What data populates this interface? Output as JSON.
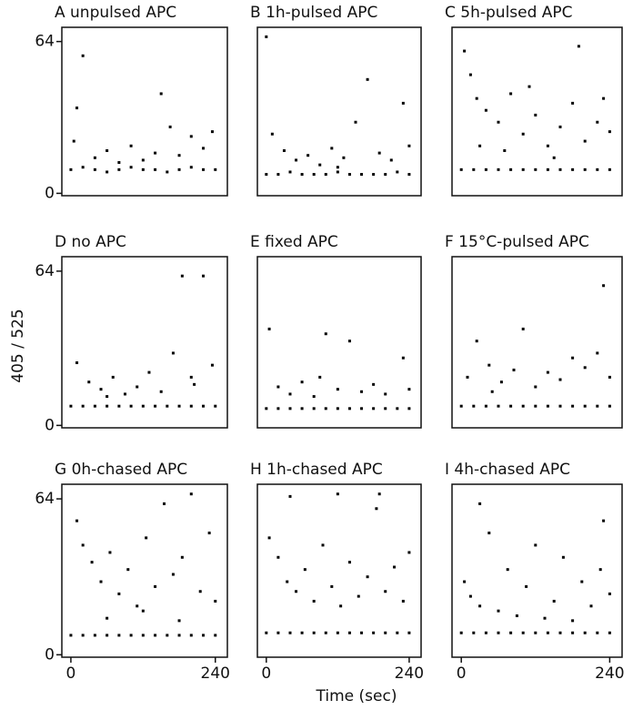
{
  "y_label": "405 / 525",
  "x_label": "Time (sec)",
  "chart_data": [
    {
      "type": "scatter",
      "title": "A unpulsed APC",
      "color": "#000",
      "xlim": [
        -15,
        260
      ],
      "ylim": [
        -1,
        70
      ],
      "yticks": [
        0,
        64
      ],
      "x": [
        0,
        20,
        40,
        60,
        80,
        100,
        120,
        140,
        160,
        180,
        200,
        220,
        240,
        5,
        20,
        40,
        60,
        80,
        100,
        120,
        140,
        150,
        165,
        180,
        200,
        220,
        235,
        10
      ],
      "values": [
        10,
        11,
        10,
        9,
        10,
        11,
        10,
        10,
        9,
        10,
        11,
        10,
        10,
        22,
        58,
        15,
        18,
        13,
        20,
        14,
        17,
        42,
        28,
        16,
        24,
        19,
        26,
        36
      ]
    },
    {
      "type": "scatter",
      "title": "B 1h-pulsed APC",
      "color": "#000",
      "xlim": [
        -15,
        260
      ],
      "ylim": [
        -1,
        70
      ],
      "x": [
        0,
        20,
        40,
        60,
        80,
        100,
        120,
        140,
        160,
        180,
        200,
        220,
        240,
        0,
        10,
        30,
        50,
        70,
        90,
        110,
        130,
        150,
        170,
        190,
        210,
        230,
        240,
        120
      ],
      "values": [
        8,
        8,
        9,
        8,
        8,
        8,
        9,
        8,
        8,
        8,
        8,
        9,
        8,
        66,
        25,
        18,
        14,
        16,
        12,
        19,
        15,
        30,
        48,
        17,
        14,
        38,
        20,
        11
      ]
    },
    {
      "type": "scatter",
      "title": "C 5h-pulsed APC",
      "color": "#000",
      "xlim": [
        -15,
        260
      ],
      "ylim": [
        -1,
        70
      ],
      "x": [
        0,
        20,
        40,
        60,
        80,
        100,
        120,
        140,
        160,
        180,
        200,
        220,
        240,
        5,
        15,
        25,
        40,
        60,
        80,
        100,
        120,
        140,
        160,
        180,
        200,
        220,
        240,
        190,
        30,
        70,
        110,
        150,
        230
      ],
      "values": [
        10,
        10,
        10,
        10,
        10,
        10,
        10,
        10,
        10,
        10,
        10,
        10,
        10,
        60,
        50,
        40,
        35,
        30,
        42,
        25,
        33,
        20,
        28,
        38,
        22,
        30,
        26,
        62,
        20,
        18,
        45,
        15,
        40
      ]
    },
    {
      "type": "scatter",
      "title": "D no APC",
      "color": "#000",
      "xlim": [
        -15,
        260
      ],
      "ylim": [
        -1,
        70
      ],
      "yticks": [
        0,
        64
      ],
      "x": [
        0,
        20,
        40,
        60,
        80,
        100,
        120,
        140,
        160,
        180,
        200,
        220,
        240,
        10,
        30,
        50,
        70,
        90,
        110,
        130,
        150,
        170,
        185,
        205,
        220,
        235,
        60,
        200
      ],
      "values": [
        8,
        8,
        8,
        8,
        8,
        8,
        8,
        8,
        8,
        8,
        8,
        8,
        8,
        26,
        18,
        15,
        20,
        13,
        16,
        22,
        14,
        30,
        62,
        17,
        62,
        25,
        12,
        20
      ]
    },
    {
      "type": "scatter",
      "title": "E fixed APC",
      "color": "#000",
      "xlim": [
        -15,
        260
      ],
      "ylim": [
        -1,
        70
      ],
      "x": [
        0,
        20,
        40,
        60,
        80,
        100,
        120,
        140,
        160,
        180,
        200,
        220,
        240,
        5,
        20,
        40,
        60,
        80,
        100,
        120,
        140,
        160,
        180,
        200,
        230,
        240,
        90
      ],
      "values": [
        7,
        7,
        7,
        7,
        7,
        7,
        7,
        7,
        7,
        7,
        7,
        7,
        7,
        40,
        16,
        13,
        18,
        12,
        38,
        15,
        35,
        14,
        17,
        13,
        28,
        15,
        20
      ]
    },
    {
      "type": "scatter",
      "title": "F 15°C-pulsed APC",
      "color": "#000",
      "xlim": [
        -15,
        260
      ],
      "ylim": [
        -1,
        70
      ],
      "x": [
        0,
        20,
        40,
        60,
        80,
        100,
        120,
        140,
        160,
        180,
        200,
        220,
        240,
        10,
        25,
        45,
        65,
        85,
        100,
        120,
        140,
        160,
        180,
        200,
        220,
        230,
        240,
        50
      ],
      "values": [
        8,
        8,
        8,
        8,
        8,
        8,
        8,
        8,
        8,
        8,
        8,
        8,
        8,
        20,
        35,
        25,
        18,
        23,
        40,
        16,
        22,
        19,
        28,
        24,
        30,
        58,
        20,
        14
      ]
    },
    {
      "type": "scatter",
      "title": "G 0h-chased APC",
      "color": "#000",
      "xlim": [
        -15,
        260
      ],
      "ylim": [
        -1,
        70
      ],
      "yticks": [
        0,
        64
      ],
      "xticks": [
        0,
        240
      ],
      "x": [
        0,
        20,
        40,
        60,
        80,
        100,
        120,
        140,
        160,
        180,
        200,
        220,
        240,
        10,
        20,
        35,
        50,
        65,
        80,
        95,
        110,
        125,
        140,
        155,
        170,
        185,
        200,
        215,
        230,
        240,
        60,
        120,
        180
      ],
      "values": [
        8,
        8,
        8,
        8,
        8,
        8,
        8,
        8,
        8,
        8,
        8,
        8,
        8,
        55,
        45,
        38,
        30,
        42,
        25,
        35,
        20,
        48,
        28,
        62,
        33,
        40,
        66,
        26,
        50,
        22,
        15,
        18,
        14
      ]
    },
    {
      "type": "scatter",
      "title": "H 1h-chased APC",
      "color": "#000",
      "xlim": [
        -15,
        260
      ],
      "ylim": [
        -1,
        70
      ],
      "xticks": [
        0,
        240
      ],
      "x": [
        0,
        20,
        40,
        60,
        80,
        100,
        120,
        140,
        160,
        180,
        200,
        220,
        240,
        5,
        20,
        35,
        50,
        65,
        80,
        95,
        110,
        125,
        140,
        155,
        170,
        185,
        200,
        215,
        230,
        240,
        40,
        120,
        190
      ],
      "values": [
        9,
        9,
        9,
        9,
        9,
        9,
        9,
        9,
        9,
        9,
        9,
        9,
        9,
        48,
        40,
        30,
        26,
        35,
        22,
        45,
        28,
        20,
        38,
        24,
        32,
        60,
        26,
        36,
        22,
        42,
        65,
        66,
        66
      ]
    },
    {
      "type": "scatter",
      "title": "I 4h-chased APC",
      "color": "#000",
      "xlim": [
        -15,
        260
      ],
      "ylim": [
        -1,
        70
      ],
      "xticks": [
        0,
        240
      ],
      "x": [
        0,
        20,
        40,
        60,
        80,
        100,
        120,
        140,
        160,
        180,
        200,
        220,
        240,
        5,
        15,
        30,
        45,
        60,
        75,
        90,
        105,
        120,
        135,
        150,
        165,
        180,
        195,
        210,
        225,
        240,
        30,
        230
      ],
      "values": [
        9,
        9,
        9,
        9,
        9,
        9,
        9,
        9,
        9,
        9,
        9,
        9,
        9,
        30,
        24,
        20,
        50,
        18,
        35,
        16,
        28,
        45,
        15,
        22,
        40,
        14,
        30,
        20,
        35,
        25,
        62,
        55
      ]
    }
  ]
}
